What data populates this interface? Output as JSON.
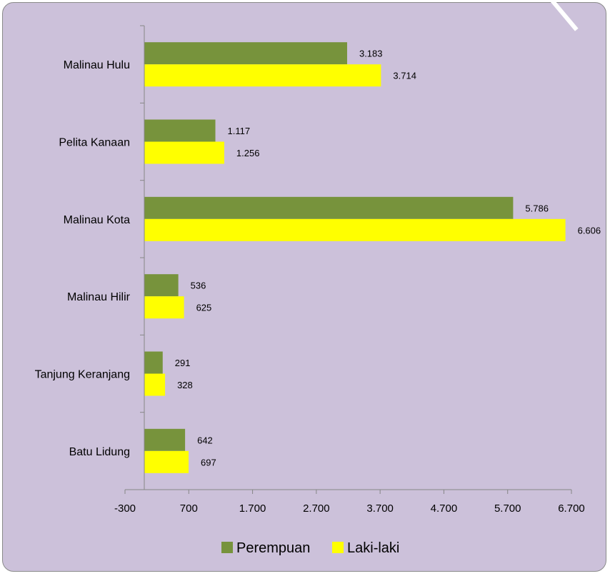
{
  "chart_data": {
    "type": "bar",
    "orientation": "horizontal",
    "categories": [
      "Malinau Hulu",
      "Pelita Kanaan",
      "Malinau Kota",
      "Malinau Hilir",
      "Tanjung Keranjang",
      "Batu Lidung"
    ],
    "series": [
      {
        "name": "Perempuan",
        "color": "#77933c",
        "values": [
          3183,
          1117,
          5786,
          536,
          291,
          642
        ],
        "labels": [
          "3.183",
          "1.117",
          "5.786",
          "536",
          "291",
          "642"
        ]
      },
      {
        "name": "Laki-laki",
        "color": "#ffff00",
        "values": [
          3714,
          1256,
          6606,
          625,
          328,
          697
        ],
        "labels": [
          "3.714",
          "1.256",
          "6.606",
          "625",
          "328",
          "697"
        ]
      }
    ],
    "xlim": [
      -300,
      6700
    ],
    "xticks": [
      -300,
      700,
      1700,
      2700,
      3700,
      4700,
      5700,
      6700
    ],
    "xtick_labels": [
      "-300",
      "700",
      "1.700",
      "2.700",
      "3.700",
      "4.700",
      "5.700",
      "6.700"
    ],
    "title": "",
    "xlabel": "",
    "ylabel": "",
    "grid": false,
    "legend_position": "bottom",
    "background_color": "#ccc1da"
  }
}
